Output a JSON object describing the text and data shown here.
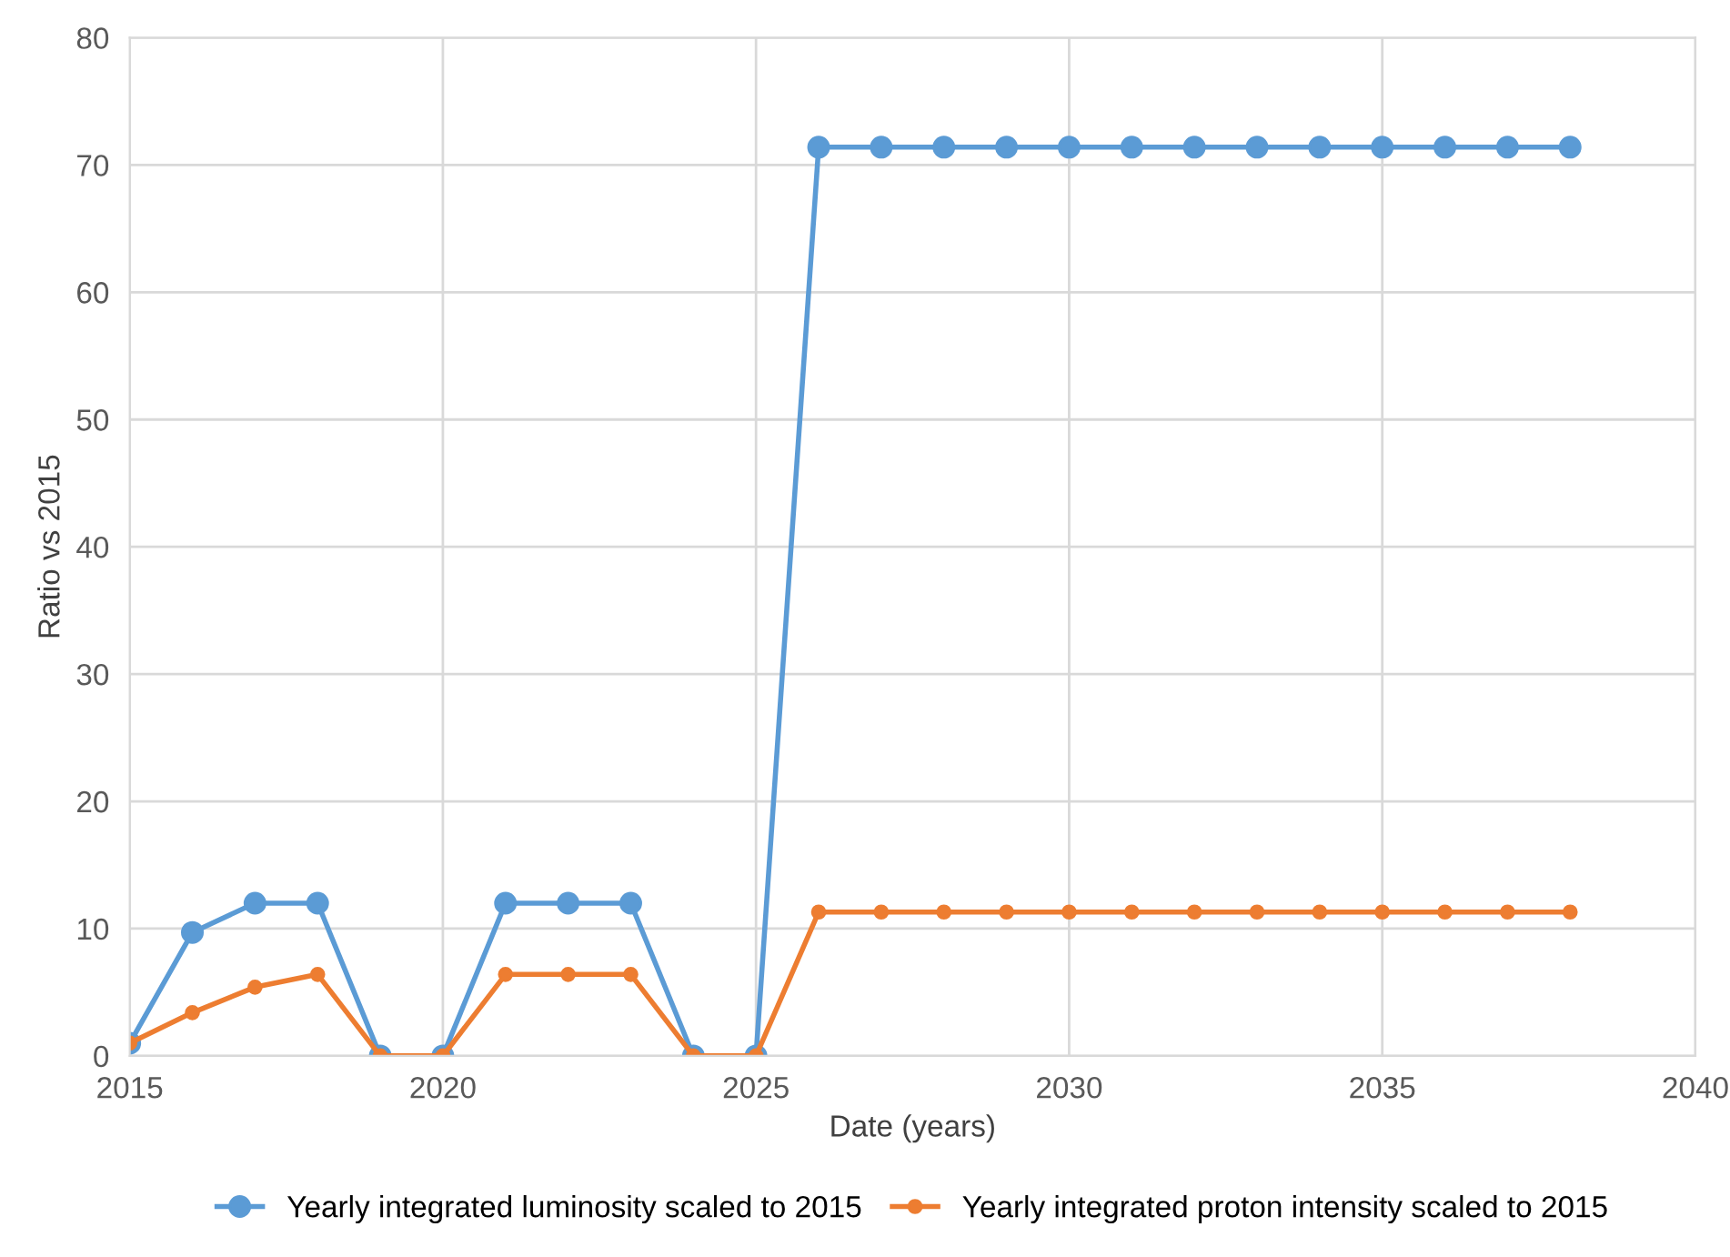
{
  "chart_data": {
    "type": "line",
    "xlabel": "Date (years)",
    "ylabel": "Ratio vs 2015",
    "x": [
      2015,
      2016,
      2017,
      2018,
      2019,
      2020,
      2021,
      2022,
      2023,
      2024,
      2025,
      2026,
      2027,
      2028,
      2029,
      2030,
      2031,
      2032,
      2033,
      2034,
      2035,
      2036,
      2037,
      2038
    ],
    "series": [
      {
        "name": "Yearly integrated luminosity scaled to 2015",
        "color": "#5b9bd5",
        "values": [
          1,
          9.7,
          12,
          12,
          0,
          0,
          12,
          12,
          12,
          0,
          0,
          71.4,
          71.4,
          71.4,
          71.4,
          71.4,
          71.4,
          71.4,
          71.4,
          71.4,
          71.4,
          71.4,
          71.4,
          71.4
        ]
      },
      {
        "name": "Yearly integrated proton intensity scaled to 2015",
        "color": "#ed7d31",
        "values": [
          1,
          3.4,
          5.4,
          6.4,
          0,
          0,
          6.4,
          6.4,
          6.4,
          0,
          0,
          11.3,
          11.3,
          11.3,
          11.3,
          11.3,
          11.3,
          11.3,
          11.3,
          11.3,
          11.3,
          11.3,
          11.3,
          11.3
        ]
      }
    ],
    "xlim": [
      2015,
      2040
    ],
    "xticks": [
      2015,
      2020,
      2025,
      2030,
      2035,
      2040
    ],
    "ylim": [
      0,
      80
    ],
    "yticks": [
      0,
      10,
      20,
      30,
      40,
      50,
      60,
      70,
      80
    ],
    "grid": true,
    "legend": "bottom",
    "marker": "circle",
    "line_style": "solid"
  }
}
